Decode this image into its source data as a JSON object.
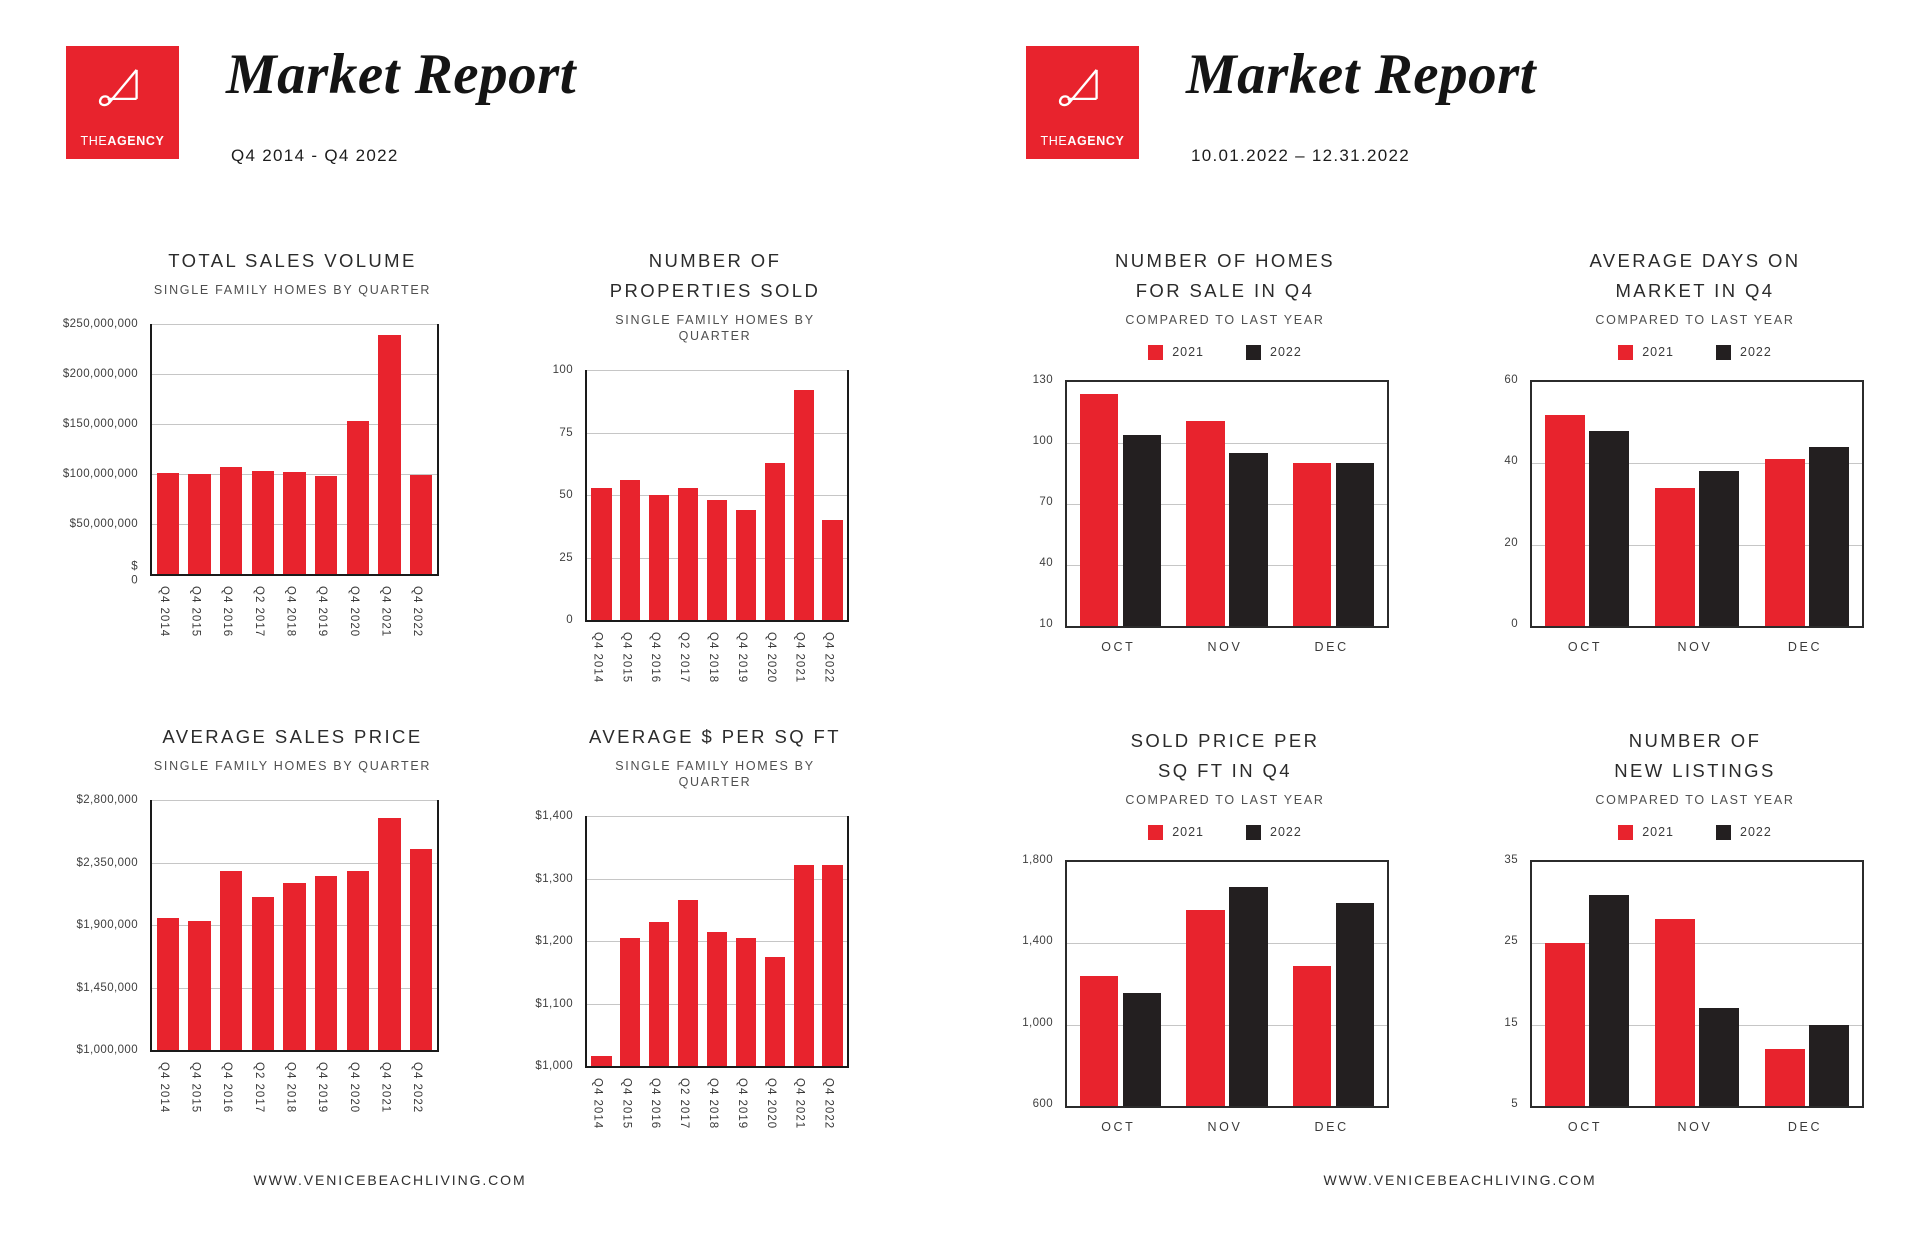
{
  "colors": {
    "red": "#E8232D",
    "black": "#231F20",
    "grid": "#C6C6C6",
    "axis": "#1A1A1A"
  },
  "pages": [
    {
      "header": {
        "logo_the": "THE",
        "logo_agency": "AGENCY",
        "title": "Market Report",
        "subtitle": "Q4 2014 - Q4 2022"
      },
      "footer": "WWW.VENICEBEACHLIVING.COM"
    },
    {
      "header": {
        "logo_the": "THE",
        "logo_agency": "AGENCY",
        "title": "Market Report",
        "subtitle": "10.01.2022 – 12.31.2022"
      },
      "footer": "WWW.VENICEBEACHLIVING.COM"
    }
  ],
  "chart_data": [
    {
      "type": "bar",
      "title_lines": [
        "TOTAL SALES VOLUME"
      ],
      "subtitle": "SINGLE FAMILY HOMES BY QUARTER",
      "categories": [
        "Q4 2014",
        "Q4 2015",
        "Q4 2016",
        "Q2 2017",
        "Q4 2018",
        "Q4 2019",
        "Q4 2020",
        "Q4 2021",
        "Q4 2022"
      ],
      "values": [
        101000000,
        100000000,
        107000000,
        103000000,
        102000000,
        98000000,
        153000000,
        239000000,
        99000000
      ],
      "bar_color": "red",
      "ylim": [
        0,
        250000000
      ],
      "yticks": [
        {
          "label": "$250,000,000",
          "value": 250000000
        },
        {
          "label": "$200,000,000",
          "value": 200000000
        },
        {
          "label": "$150,000,000",
          "value": 150000000
        },
        {
          "label": "$100,000,000",
          "value": 100000000
        },
        {
          "label": "$50,000,000",
          "value": 50000000
        },
        {
          "label": "$\n0",
          "value": 0
        }
      ],
      "grid": true,
      "legend_position": "none",
      "x_rotated": true
    },
    {
      "type": "bar",
      "title_lines": [
        "NUMBER OF PROPERTIES SOLD"
      ],
      "subtitle": "SINGLE FAMILY HOMES BY QUARTER",
      "categories": [
        "Q4 2014",
        "Q4 2015",
        "Q4 2016",
        "Q2 2017",
        "Q4 2018",
        "Q4 2019",
        "Q4 2020",
        "Q4 2021",
        "Q4 2022"
      ],
      "values": [
        53,
        56,
        50,
        53,
        48,
        44,
        63,
        92,
        40
      ],
      "bar_color": "red",
      "ylim": [
        0,
        100
      ],
      "yticks": [
        {
          "label": "100",
          "value": 100
        },
        {
          "label": "75",
          "value": 75
        },
        {
          "label": "50",
          "value": 50
        },
        {
          "label": "25",
          "value": 25
        },
        {
          "label": "0",
          "value": 0
        }
      ],
      "grid": true,
      "legend_position": "none",
      "x_rotated": true
    },
    {
      "type": "bar",
      "title_lines": [
        "AVERAGE SALES PRICE"
      ],
      "subtitle": "SINGLE FAMILY HOMES BY QUARTER",
      "categories": [
        "Q4 2014",
        "Q4 2015",
        "Q4 2016",
        "Q2 2017",
        "Q4 2018",
        "Q4 2019",
        "Q4 2020",
        "Q4 2021",
        "Q4 2022"
      ],
      "values": [
        1950000,
        1930000,
        2290000,
        2100000,
        2200000,
        2250000,
        2290000,
        2670000,
        2450000
      ],
      "bar_color": "red",
      "ylim": [
        1000000,
        2800000
      ],
      "yticks": [
        {
          "label": "$2,800,000",
          "value": 2800000
        },
        {
          "label": "$2,350,000",
          "value": 2350000
        },
        {
          "label": "$1,900,000",
          "value": 1900000
        },
        {
          "label": "$1,450,000",
          "value": 1450000
        },
        {
          "label": "$1,000,000",
          "value": 1000000
        }
      ],
      "grid": true,
      "legend_position": "none",
      "x_rotated": true
    },
    {
      "type": "bar",
      "title_lines": [
        "AVERAGE $ PER SQ FT"
      ],
      "subtitle": "SINGLE FAMILY HOMES BY QUARTER",
      "categories": [
        "Q4 2014",
        "Q4 2015",
        "Q4 2016",
        "Q2 2017",
        "Q4 2018",
        "Q4 2019",
        "Q4 2020",
        "Q4 2021",
        "Q4 2022"
      ],
      "values": [
        1016,
        1205,
        1230,
        1265,
        1215,
        1205,
        1175,
        1322,
        1322
      ],
      "bar_color": "red",
      "ylim": [
        1000,
        1400
      ],
      "yticks": [
        {
          "label": "$1,400",
          "value": 1400
        },
        {
          "label": "$1,300",
          "value": 1300
        },
        {
          "label": "$1,200",
          "value": 1200
        },
        {
          "label": "$1,100",
          "value": 1100
        },
        {
          "label": "$1,000",
          "value": 1000
        }
      ],
      "grid": true,
      "legend_position": "none",
      "x_rotated": true
    },
    {
      "type": "grouped-bar",
      "title_lines": [
        "NUMBER OF HOMES",
        "FOR SALE IN Q4"
      ],
      "subtitle": "COMPARED TO LAST YEAR",
      "categories": [
        "OCT",
        "NOV",
        "DEC"
      ],
      "series": [
        {
          "name": "2021",
          "color": "red",
          "values": [
            124,
            111,
            90
          ]
        },
        {
          "name": "2022",
          "color": "black",
          "values": [
            104,
            95,
            90
          ]
        }
      ],
      "ylim": [
        10,
        130
      ],
      "yticks": [
        {
          "label": "130",
          "value": 130
        },
        {
          "label": "100",
          "value": 100
        },
        {
          "label": "70",
          "value": 70
        },
        {
          "label": "40",
          "value": 40
        },
        {
          "label": "10",
          "value": 10
        }
      ],
      "grid": true,
      "legend_position": "top",
      "x_rotated": false
    },
    {
      "type": "grouped-bar",
      "title_lines": [
        "AVERAGE DAYS ON",
        "MARKET IN Q4"
      ],
      "subtitle": "COMPARED TO LAST YEAR",
      "categories": [
        "OCT",
        "NOV",
        "DEC"
      ],
      "series": [
        {
          "name": "2021",
          "color": "red",
          "values": [
            52,
            34,
            41
          ]
        },
        {
          "name": "2022",
          "color": "black",
          "values": [
            48,
            38,
            44
          ]
        }
      ],
      "ylim": [
        0,
        60
      ],
      "yticks": [
        {
          "label": "60",
          "value": 60
        },
        {
          "label": "40",
          "value": 40
        },
        {
          "label": "20",
          "value": 20
        },
        {
          "label": "0",
          "value": 0
        }
      ],
      "grid": true,
      "legend_position": "top",
      "x_rotated": false
    },
    {
      "type": "grouped-bar",
      "title_lines": [
        "SOLD PRICE PER",
        "SQ FT IN Q4"
      ],
      "subtitle": "COMPARED TO LAST YEAR",
      "categories": [
        "OCT",
        "NOV",
        "DEC"
      ],
      "series": [
        {
          "name": "2021",
          "color": "red",
          "values": [
            1240,
            1565,
            1290
          ]
        },
        {
          "name": "2022",
          "color": "black",
          "values": [
            1155,
            1675,
            1600
          ]
        }
      ],
      "ylim": [
        600,
        1800
      ],
      "yticks": [
        {
          "label": "1,800",
          "value": 1800
        },
        {
          "label": "1,400",
          "value": 1400
        },
        {
          "label": "1,000",
          "value": 1000
        },
        {
          "label": "600",
          "value": 600
        }
      ],
      "grid": true,
      "legend_position": "top",
      "x_rotated": false
    },
    {
      "type": "grouped-bar",
      "title_lines": [
        "NUMBER OF",
        "NEW LISTINGS"
      ],
      "subtitle": "COMPARED TO LAST YEAR",
      "categories": [
        "OCT",
        "NOV",
        "DEC"
      ],
      "series": [
        {
          "name": "2021",
          "color": "red",
          "values": [
            25,
            28,
            12
          ]
        },
        {
          "name": "2022",
          "color": "black",
          "values": [
            31,
            17,
            15
          ]
        }
      ],
      "ylim": [
        5,
        35
      ],
      "yticks": [
        {
          "label": "35",
          "value": 35
        },
        {
          "label": "25",
          "value": 25
        },
        {
          "label": "15",
          "value": 15
        },
        {
          "label": "5",
          "value": 5
        }
      ],
      "grid": true,
      "legend_position": "top",
      "x_rotated": false
    }
  ]
}
